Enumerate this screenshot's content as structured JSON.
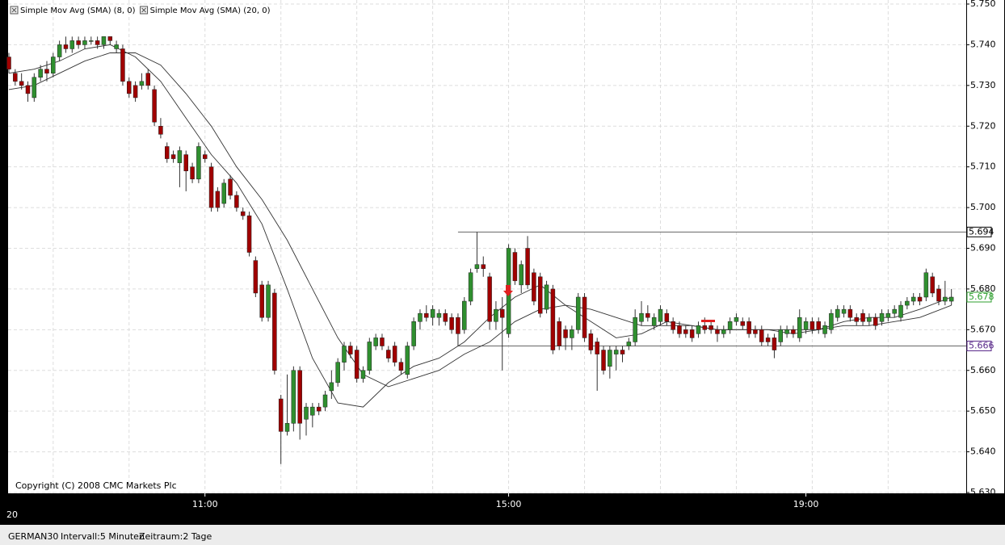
{
  "chart_data": {
    "type": "candlestick",
    "watermark": "Copyright (C) 2008 CMC Markets Plc",
    "x_axis_start_label": "20",
    "up_color": "#2f8f2f",
    "down_color": "#a00000",
    "ylim": [
      5.63,
      5.75
    ],
    "yticks": [
      {
        "value": 5.63,
        "label": "5.630"
      },
      {
        "value": 5.64,
        "label": "5.640"
      },
      {
        "value": 5.65,
        "label": "5.650"
      },
      {
        "value": 5.66,
        "label": "5.660"
      },
      {
        "value": 5.67,
        "label": "5.670"
      },
      {
        "value": 5.68,
        "label": "5.680"
      },
      {
        "value": 5.69,
        "label": "5.690"
      },
      {
        "value": 5.7,
        "label": "5.700"
      },
      {
        "value": 5.71,
        "label": "5.710"
      },
      {
        "value": 5.72,
        "label": "5.720"
      },
      {
        "value": 5.73,
        "label": "5.730"
      },
      {
        "value": 5.74,
        "label": "5.740"
      },
      {
        "value": 5.75,
        "label": "5.750"
      }
    ],
    "grid": true,
    "x_grid_step": 12,
    "levels": [
      {
        "value": 5.694,
        "label": "5.694",
        "x_start": 71,
        "color": "#000000"
      },
      {
        "value": 5.666,
        "label": "5.666",
        "x_start": 71,
        "color": "#5a2a8a"
      }
    ],
    "last_price": {
      "value": 5.678,
      "label": "5.678",
      "color": "#2f9f2f"
    },
    "categories": [
      null,
      null,
      null,
      null,
      null,
      null,
      null,
      null,
      null,
      null,
      null,
      null,
      null,
      null,
      null,
      null,
      null,
      null,
      null,
      null,
      null,
      null,
      null,
      null,
      null,
      null,
      null,
      null,
      null,
      null,
      null,
      "11:00",
      null,
      null,
      null,
      null,
      null,
      null,
      null,
      null,
      null,
      null,
      null,
      null,
      null,
      null,
      null,
      null,
      null,
      null,
      null,
      null,
      null,
      null,
      null,
      null,
      null,
      null,
      null,
      null,
      null,
      null,
      null,
      null,
      null,
      null,
      null,
      null,
      null,
      null,
      null,
      null,
      null,
      null,
      null,
      null,
      null,
      null,
      null,
      "15:00",
      null,
      null,
      null,
      null,
      null,
      null,
      null,
      null,
      null,
      null,
      null,
      null,
      null,
      null,
      null,
      null,
      null,
      null,
      null,
      null,
      null,
      null,
      null,
      null,
      null,
      null,
      null,
      null,
      null,
      null,
      null,
      null,
      null,
      null,
      null,
      null,
      null,
      null,
      null,
      null,
      null,
      null,
      null,
      null,
      null,
      null,
      "19:00",
      null,
      null,
      null,
      null,
      null,
      null,
      null,
      null,
      null,
      null,
      null,
      null,
      null,
      null,
      null,
      null,
      null,
      null,
      null,
      null,
      null,
      null
    ],
    "candles": [
      [
        5.737,
        5.738,
        5.733,
        5.734
      ],
      [
        5.733,
        5.734,
        5.73,
        5.731
      ],
      [
        5.731,
        5.733,
        5.729,
        5.73
      ],
      [
        5.73,
        5.731,
        5.726,
        5.728
      ],
      [
        5.727,
        5.733,
        5.726,
        5.732
      ],
      [
        5.732,
        5.735,
        5.731,
        5.734
      ],
      [
        5.734,
        5.736,
        5.731,
        5.733
      ],
      [
        5.733,
        5.738,
        5.732,
        5.737
      ],
      [
        5.737,
        5.741,
        5.736,
        5.74
      ],
      [
        5.74,
        5.742,
        5.738,
        5.739
      ],
      [
        5.739,
        5.742,
        5.738,
        5.741
      ],
      [
        5.741,
        5.742,
        5.739,
        5.74
      ],
      [
        5.74,
        5.742,
        5.739,
        5.741
      ],
      [
        5.741,
        5.742,
        5.74,
        5.741
      ],
      [
        5.741,
        5.742,
        5.739,
        5.74
      ],
      [
        5.74,
        5.742,
        5.739,
        5.742
      ],
      [
        5.742,
        5.742,
        5.74,
        5.741
      ],
      [
        5.739,
        5.741,
        5.738,
        5.74
      ],
      [
        5.739,
        5.74,
        5.73,
        5.731
      ],
      [
        5.731,
        5.732,
        5.727,
        5.728
      ],
      [
        5.73,
        5.731,
        5.726,
        5.727
      ],
      [
        5.73,
        5.733,
        5.729,
        5.731
      ],
      [
        5.733,
        5.734,
        5.729,
        5.73
      ],
      [
        5.729,
        5.73,
        5.72,
        5.721
      ],
      [
        5.72,
        5.722,
        5.717,
        5.718
      ],
      [
        5.715,
        5.716,
        5.711,
        5.712
      ],
      [
        5.713,
        5.714,
        5.711,
        5.712
      ],
      [
        5.711,
        5.715,
        5.705,
        5.714
      ],
      [
        5.713,
        5.714,
        5.704,
        5.709
      ],
      [
        5.71,
        5.711,
        5.706,
        5.707
      ],
      [
        5.707,
        5.716,
        5.706,
        5.715
      ],
      [
        5.713,
        5.714,
        5.711,
        5.712
      ],
      [
        5.71,
        5.711,
        5.699,
        5.7
      ],
      [
        5.704,
        5.705,
        5.699,
        5.7
      ],
      [
        5.701,
        5.707,
        5.7,
        5.706
      ],
      [
        5.707,
        5.708,
        5.702,
        5.703
      ],
      [
        5.703,
        5.704,
        5.699,
        5.7
      ],
      [
        5.699,
        5.7,
        5.697,
        5.698
      ],
      [
        5.698,
        5.699,
        5.688,
        5.689
      ],
      [
        5.687,
        5.688,
        5.678,
        5.679
      ],
      [
        5.681,
        5.682,
        5.672,
        5.673
      ],
      [
        5.673,
        5.682,
        5.672,
        5.681
      ],
      [
        5.679,
        5.68,
        5.659,
        5.66
      ],
      [
        5.653,
        5.654,
        5.637,
        5.645
      ],
      [
        5.645,
        5.659,
        5.644,
        5.647
      ],
      [
        5.647,
        5.661,
        5.645,
        5.66
      ],
      [
        5.66,
        5.661,
        5.643,
        5.647
      ],
      [
        5.648,
        5.652,
        5.644,
        5.651
      ],
      [
        5.649,
        5.652,
        5.646,
        5.651
      ],
      [
        5.651,
        5.652,
        5.649,
        5.65
      ],
      [
        5.651,
        5.655,
        5.65,
        5.654
      ],
      [
        5.655,
        5.66,
        5.653,
        5.657
      ],
      [
        5.657,
        5.663,
        5.656,
        5.662
      ],
      [
        5.662,
        5.667,
        5.66,
        5.666
      ],
      [
        5.666,
        5.667,
        5.663,
        5.664
      ],
      [
        5.665,
        5.666,
        5.657,
        5.658
      ],
      [
        5.658,
        5.661,
        5.657,
        5.66
      ],
      [
        5.66,
        5.668,
        5.659,
        5.667
      ],
      [
        5.666,
        5.669,
        5.665,
        5.668
      ],
      [
        5.668,
        5.669,
        5.665,
        5.666
      ],
      [
        5.665,
        5.666,
        5.662,
        5.663
      ],
      [
        5.666,
        5.667,
        5.661,
        5.662
      ],
      [
        5.662,
        5.663,
        5.659,
        5.66
      ],
      [
        5.659,
        5.667,
        5.658,
        5.666
      ],
      [
        5.666,
        5.673,
        5.665,
        5.672
      ],
      [
        5.672,
        5.675,
        5.67,
        5.674
      ],
      [
        5.674,
        5.676,
        5.672,
        5.673
      ],
      [
        5.673,
        5.676,
        5.671,
        5.675
      ],
      [
        5.673,
        5.675,
        5.671,
        5.674
      ],
      [
        5.674,
        5.675,
        5.671,
        5.672
      ],
      [
        5.673,
        5.674,
        5.669,
        5.67
      ],
      [
        5.673,
        5.674,
        5.666,
        5.669
      ],
      [
        5.67,
        5.678,
        5.669,
        5.677
      ],
      [
        5.677,
        5.685,
        5.676,
        5.684
      ],
      [
        5.685,
        5.694,
        5.684,
        5.686
      ],
      [
        5.686,
        5.688,
        5.683,
        5.685
      ],
      [
        5.683,
        5.684,
        5.67,
        5.672
      ],
      [
        5.672,
        5.677,
        5.67,
        5.675
      ],
      [
        5.675,
        5.678,
        5.66,
        5.673
      ],
      [
        5.669,
        5.691,
        5.668,
        5.69
      ],
      [
        5.689,
        5.69,
        5.681,
        5.682
      ],
      [
        5.681,
        5.687,
        5.679,
        5.686
      ],
      [
        5.69,
        5.693,
        5.68,
        5.681
      ],
      [
        5.684,
        5.685,
        5.676,
        5.677
      ],
      [
        5.683,
        5.684,
        5.673,
        5.674
      ],
      [
        5.675,
        5.682,
        5.674,
        5.681
      ],
      [
        5.68,
        5.681,
        5.664,
        5.665
      ],
      [
        5.672,
        5.673,
        5.665,
        5.666
      ],
      [
        5.67,
        5.671,
        5.665,
        5.668
      ],
      [
        5.668,
        5.671,
        5.665,
        5.67
      ],
      [
        5.67,
        5.679,
        5.669,
        5.678
      ],
      [
        5.678,
        5.679,
        5.667,
        5.668
      ],
      [
        5.669,
        5.67,
        5.664,
        5.665
      ],
      [
        5.667,
        5.668,
        5.655,
        5.664
      ],
      [
        5.665,
        5.666,
        5.659,
        5.66
      ],
      [
        5.661,
        5.666,
        5.658,
        5.665
      ],
      [
        5.664,
        5.666,
        5.66,
        5.665
      ],
      [
        5.665,
        5.666,
        5.662,
        5.664
      ],
      [
        5.666,
        5.668,
        5.665,
        5.667
      ],
      [
        5.667,
        5.675,
        5.666,
        5.673
      ],
      [
        5.672,
        5.677,
        5.671,
        5.674
      ],
      [
        5.674,
        5.676,
        5.672,
        5.673
      ],
      [
        5.671,
        5.674,
        5.67,
        5.673
      ],
      [
        5.672,
        5.676,
        5.671,
        5.675
      ],
      [
        5.674,
        5.675,
        5.671,
        5.672
      ],
      [
        5.672,
        5.673,
        5.669,
        5.67
      ],
      [
        5.671,
        5.672,
        5.668,
        5.669
      ],
      [
        5.67,
        5.671,
        5.668,
        5.669
      ],
      [
        5.67,
        5.671,
        5.667,
        5.668
      ],
      [
        5.669,
        5.672,
        5.668,
        5.671
      ],
      [
        5.671,
        5.673,
        5.669,
        5.67
      ],
      [
        5.671,
        5.672,
        5.669,
        5.67
      ],
      [
        5.67,
        5.671,
        5.667,
        5.669
      ],
      [
        5.669,
        5.671,
        5.668,
        5.67
      ],
      [
        5.67,
        5.673,
        5.669,
        5.672
      ],
      [
        5.672,
        5.674,
        5.671,
        5.673
      ],
      [
        5.672,
        5.673,
        5.67,
        5.671
      ],
      [
        5.672,
        5.673,
        5.668,
        5.669
      ],
      [
        5.67,
        5.671,
        5.668,
        5.669
      ],
      [
        5.67,
        5.671,
        5.666,
        5.667
      ],
      [
        5.668,
        5.669,
        5.666,
        5.667
      ],
      [
        5.668,
        5.669,
        5.663,
        5.665
      ],
      [
        5.667,
        5.671,
        5.666,
        5.67
      ],
      [
        5.669,
        5.671,
        5.668,
        5.67
      ],
      [
        5.67,
        5.671,
        5.668,
        5.669
      ],
      [
        5.668,
        5.675,
        5.667,
        5.673
      ],
      [
        5.67,
        5.673,
        5.669,
        5.672
      ],
      [
        5.672,
        5.673,
        5.669,
        5.67
      ],
      [
        5.672,
        5.673,
        5.669,
        5.67
      ],
      [
        5.669,
        5.672,
        5.668,
        5.671
      ],
      [
        5.67,
        5.675,
        5.669,
        5.674
      ],
      [
        5.673,
        5.676,
        5.672,
        5.675
      ],
      [
        5.674,
        5.676,
        5.673,
        5.675
      ],
      [
        5.675,
        5.676,
        5.672,
        5.673
      ],
      [
        5.673,
        5.674,
        5.671,
        5.672
      ],
      [
        5.674,
        5.675,
        5.671,
        5.672
      ],
      [
        5.672,
        5.674,
        5.671,
        5.673
      ],
      [
        5.673,
        5.674,
        5.67,
        5.671
      ],
      [
        5.672,
        5.675,
        5.671,
        5.674
      ],
      [
        5.673,
        5.675,
        5.672,
        5.674
      ],
      [
        5.674,
        5.676,
        5.673,
        5.675
      ],
      [
        5.673,
        5.677,
        5.672,
        5.676
      ],
      [
        5.676,
        5.678,
        5.675,
        5.677
      ],
      [
        5.677,
        5.679,
        5.676,
        5.678
      ],
      [
        5.678,
        5.679,
        5.676,
        5.677
      ],
      [
        5.678,
        5.685,
        5.677,
        5.684
      ],
      [
        5.683,
        5.684,
        5.678,
        5.679
      ],
      [
        5.68,
        5.681,
        5.676,
        5.677
      ],
      [
        5.677,
        5.682,
        5.676,
        5.678
      ],
      [
        5.677,
        5.68,
        5.676,
        5.678
      ]
    ],
    "series": [
      {
        "name": "Simple Mov Avg (SMA) (8, 0)",
        "color": "#333333",
        "x": [
          0,
          4,
          8,
          12,
          16,
          20,
          24,
          28,
          32,
          36,
          40,
          44,
          48,
          52,
          56,
          60,
          64,
          68,
          72,
          76,
          80,
          84,
          88,
          92,
          96,
          100,
          104,
          108,
          112,
          116,
          120,
          124,
          128,
          132,
          136,
          140,
          144,
          149
        ],
        "values": [
          5.733,
          5.734,
          5.736,
          5.739,
          5.74,
          5.737,
          5.731,
          5.722,
          5.713,
          5.706,
          5.696,
          5.68,
          5.663,
          5.652,
          5.651,
          5.657,
          5.661,
          5.663,
          5.667,
          5.673,
          5.678,
          5.681,
          5.676,
          5.672,
          5.668,
          5.669,
          5.672,
          5.671,
          5.67,
          5.67,
          5.67,
          5.669,
          5.67,
          5.672,
          5.673,
          5.673,
          5.675,
          5.678
        ]
      },
      {
        "name": "Simple Mov Avg (SMA) (20, 0)",
        "color": "#333333",
        "x": [
          0,
          4,
          8,
          12,
          16,
          20,
          24,
          28,
          32,
          36,
          40,
          44,
          48,
          52,
          56,
          60,
          64,
          68,
          72,
          76,
          80,
          84,
          88,
          92,
          96,
          100,
          104,
          108,
          112,
          116,
          120,
          124,
          128,
          132,
          136,
          140,
          144,
          149
        ],
        "values": [
          5.729,
          5.73,
          5.733,
          5.736,
          5.738,
          5.738,
          5.735,
          5.728,
          5.72,
          5.71,
          5.702,
          5.692,
          5.68,
          5.668,
          5.659,
          5.656,
          5.658,
          5.66,
          5.664,
          5.667,
          5.672,
          5.675,
          5.676,
          5.675,
          5.673,
          5.671,
          5.671,
          5.671,
          5.67,
          5.67,
          5.67,
          5.67,
          5.67,
          5.671,
          5.671,
          5.672,
          5.673,
          5.676
        ]
      }
    ]
  },
  "status_bar": {
    "symbol": "GERMAN30",
    "interval": "Intervall:5 Minuten",
    "period": "Zeitraum:2 Tage"
  }
}
